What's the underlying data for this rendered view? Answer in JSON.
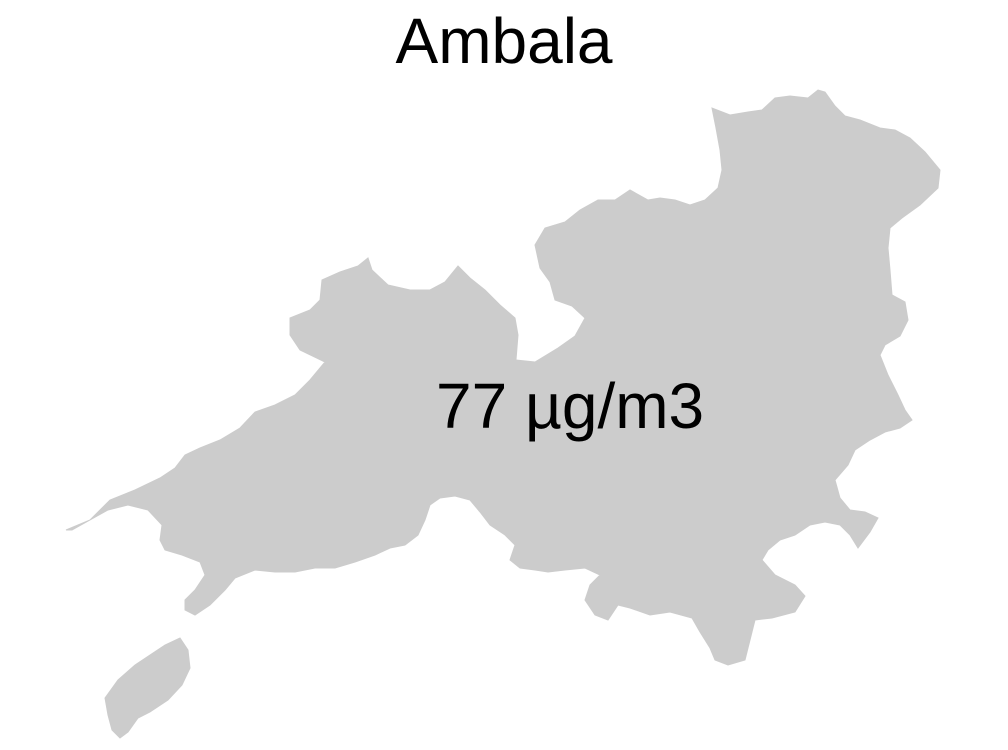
{
  "map": {
    "title": "Ambala",
    "region_fill": "#cccccc",
    "value_label": "77 µg/m3"
  }
}
